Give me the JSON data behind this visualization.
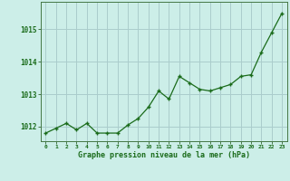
{
  "x": [
    0,
    1,
    2,
    3,
    4,
    5,
    6,
    7,
    8,
    9,
    10,
    11,
    12,
    13,
    14,
    15,
    16,
    17,
    18,
    19,
    20,
    21,
    22,
    23
  ],
  "y": [
    1011.8,
    1011.95,
    1012.1,
    1011.9,
    1012.1,
    1011.8,
    1011.8,
    1011.8,
    1012.05,
    1012.25,
    1012.6,
    1013.1,
    1012.85,
    1013.55,
    1013.35,
    1013.15,
    1013.1,
    1013.2,
    1013.3,
    1013.55,
    1013.6,
    1014.3,
    1014.9,
    1015.5
  ],
  "line_color": "#1a6b1a",
  "marker_color": "#1a6b1a",
  "bg_color": "#cceee8",
  "grid_color": "#aacccc",
  "xlabel": "Graphe pression niveau de la mer (hPa)",
  "xlabel_color": "#1a6b1a",
  "ylim": [
    1011.55,
    1015.85
  ],
  "yticks": [
    1012,
    1013,
    1014,
    1015
  ],
  "xticks": [
    0,
    1,
    2,
    3,
    4,
    5,
    6,
    7,
    8,
    9,
    10,
    11,
    12,
    13,
    14,
    15,
    16,
    17,
    18,
    19,
    20,
    21,
    22,
    23
  ]
}
